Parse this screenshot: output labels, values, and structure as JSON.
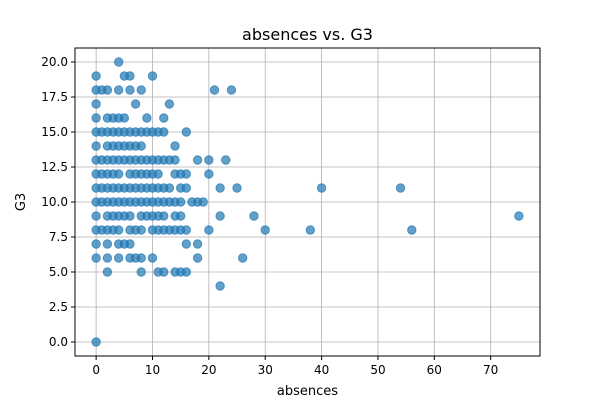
{
  "chart_data": {
    "type": "scatter",
    "title": "absences vs. G3",
    "xlabel": "absences",
    "ylabel": "G3",
    "xlim": [
      -3.75,
      78.75
    ],
    "ylim": [
      -1.0,
      21.0
    ],
    "x_ticks": [
      0,
      10,
      20,
      30,
      40,
      50,
      60,
      70
    ],
    "x_tick_labels": [
      "0",
      "10",
      "20",
      "30",
      "40",
      "50",
      "60",
      "70"
    ],
    "y_ticks": [
      0,
      2.5,
      5,
      7.5,
      10,
      12.5,
      15,
      17.5,
      20
    ],
    "y_tick_labels": [
      "0.0",
      "2.5",
      "5.0",
      "7.5",
      "10.0",
      "12.5",
      "15.0",
      "17.5",
      "20.0"
    ],
    "grid": true,
    "point_color": "#1f77b4",
    "point_opacity": 0.7,
    "series": [
      {
        "points": [
          [
            0,
            0
          ],
          [
            0,
            6
          ],
          [
            0,
            7
          ],
          [
            0,
            8
          ],
          [
            0,
            9
          ],
          [
            0,
            10
          ],
          [
            0,
            11
          ],
          [
            0,
            12
          ],
          [
            0,
            13
          ],
          [
            0,
            14
          ],
          [
            0,
            15
          ],
          [
            0,
            16
          ],
          [
            0,
            17
          ],
          [
            0,
            18
          ],
          [
            0,
            19
          ],
          [
            1,
            8
          ],
          [
            1,
            10
          ],
          [
            1,
            11
          ],
          [
            1,
            12
          ],
          [
            1,
            13
          ],
          [
            1,
            15
          ],
          [
            1,
            18
          ],
          [
            2,
            5
          ],
          [
            2,
            6
          ],
          [
            2,
            7
          ],
          [
            2,
            8
          ],
          [
            2,
            9
          ],
          [
            2,
            10
          ],
          [
            2,
            11
          ],
          [
            2,
            12
          ],
          [
            2,
            13
          ],
          [
            2,
            14
          ],
          [
            2,
            15
          ],
          [
            2,
            16
          ],
          [
            2,
            18
          ],
          [
            3,
            8
          ],
          [
            3,
            9
          ],
          [
            3,
            10
          ],
          [
            3,
            11
          ],
          [
            3,
            12
          ],
          [
            3,
            13
          ],
          [
            3,
            14
          ],
          [
            3,
            15
          ],
          [
            3,
            16
          ],
          [
            4,
            6
          ],
          [
            4,
            7
          ],
          [
            4,
            8
          ],
          [
            4,
            9
          ],
          [
            4,
            10
          ],
          [
            4,
            11
          ],
          [
            4,
            12
          ],
          [
            4,
            13
          ],
          [
            4,
            14
          ],
          [
            4,
            15
          ],
          [
            4,
            16
          ],
          [
            4,
            18
          ],
          [
            4,
            20
          ],
          [
            5,
            7
          ],
          [
            5,
            9
          ],
          [
            5,
            10
          ],
          [
            5,
            11
          ],
          [
            5,
            13
          ],
          [
            5,
            14
          ],
          [
            5,
            15
          ],
          [
            5,
            16
          ],
          [
            5,
            19
          ],
          [
            6,
            6
          ],
          [
            6,
            7
          ],
          [
            6,
            8
          ],
          [
            6,
            9
          ],
          [
            6,
            10
          ],
          [
            6,
            11
          ],
          [
            6,
            12
          ],
          [
            6,
            13
          ],
          [
            6,
            14
          ],
          [
            6,
            15
          ],
          [
            6,
            18
          ],
          [
            6,
            19
          ],
          [
            7,
            6
          ],
          [
            7,
            8
          ],
          [
            7,
            10
          ],
          [
            7,
            11
          ],
          [
            7,
            12
          ],
          [
            7,
            13
          ],
          [
            7,
            14
          ],
          [
            7,
            15
          ],
          [
            7,
            17
          ],
          [
            8,
            5
          ],
          [
            8,
            6
          ],
          [
            8,
            8
          ],
          [
            8,
            9
          ],
          [
            8,
            10
          ],
          [
            8,
            11
          ],
          [
            8,
            12
          ],
          [
            8,
            13
          ],
          [
            8,
            14
          ],
          [
            8,
            15
          ],
          [
            8,
            18
          ],
          [
            9,
            9
          ],
          [
            9,
            10
          ],
          [
            9,
            11
          ],
          [
            9,
            12
          ],
          [
            9,
            13
          ],
          [
            9,
            15
          ],
          [
            9,
            16
          ],
          [
            10,
            6
          ],
          [
            10,
            8
          ],
          [
            10,
            9
          ],
          [
            10,
            10
          ],
          [
            10,
            11
          ],
          [
            10,
            12
          ],
          [
            10,
            13
          ],
          [
            10,
            15
          ],
          [
            10,
            19
          ],
          [
            11,
            5
          ],
          [
            11,
            8
          ],
          [
            11,
            9
          ],
          [
            11,
            10
          ],
          [
            11,
            11
          ],
          [
            11,
            12
          ],
          [
            11,
            13
          ],
          [
            11,
            15
          ],
          [
            12,
            5
          ],
          [
            12,
            8
          ],
          [
            12,
            9
          ],
          [
            12,
            10
          ],
          [
            12,
            11
          ],
          [
            12,
            13
          ],
          [
            12,
            15
          ],
          [
            12,
            16
          ],
          [
            13,
            8
          ],
          [
            13,
            10
          ],
          [
            13,
            11
          ],
          [
            13,
            13
          ],
          [
            13,
            17
          ],
          [
            14,
            5
          ],
          [
            14,
            8
          ],
          [
            14,
            9
          ],
          [
            14,
            10
          ],
          [
            14,
            12
          ],
          [
            14,
            13
          ],
          [
            14,
            14
          ],
          [
            15,
            5
          ],
          [
            15,
            8
          ],
          [
            15,
            9
          ],
          [
            15,
            10
          ],
          [
            15,
            11
          ],
          [
            15,
            12
          ],
          [
            16,
            5
          ],
          [
            16,
            7
          ],
          [
            16,
            8
          ],
          [
            16,
            11
          ],
          [
            16,
            12
          ],
          [
            16,
            15
          ],
          [
            17,
            10
          ],
          [
            18,
            6
          ],
          [
            18,
            7
          ],
          [
            18,
            10
          ],
          [
            18,
            13
          ],
          [
            19,
            10
          ],
          [
            20,
            8
          ],
          [
            20,
            12
          ],
          [
            20,
            13
          ],
          [
            21,
            18
          ],
          [
            22,
            4
          ],
          [
            22,
            9
          ],
          [
            22,
            11
          ],
          [
            23,
            13
          ],
          [
            24,
            18
          ],
          [
            25,
            11
          ],
          [
            26,
            6
          ],
          [
            28,
            9
          ],
          [
            30,
            8
          ],
          [
            38,
            8
          ],
          [
            40,
            11
          ],
          [
            54,
            11
          ],
          [
            56,
            8
          ],
          [
            75,
            9
          ]
        ]
      }
    ]
  }
}
